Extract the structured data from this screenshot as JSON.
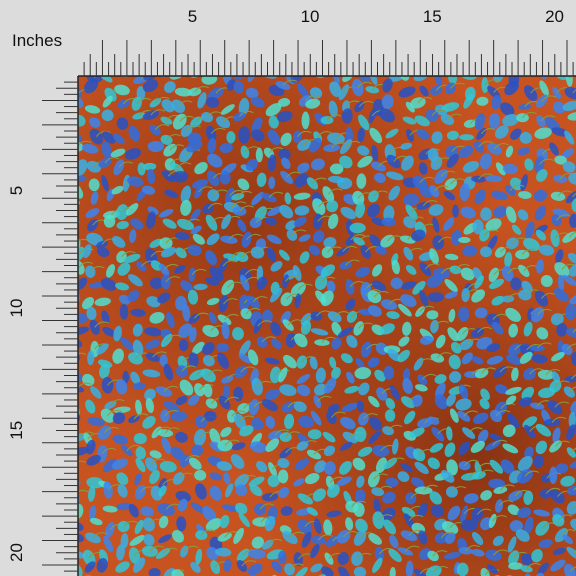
{
  "unit_label": "Inches",
  "top_ruler": {
    "labels": [
      5,
      10,
      15,
      20
    ]
  },
  "left_ruler": {
    "labels": [
      5,
      10,
      15,
      20
    ]
  }
}
